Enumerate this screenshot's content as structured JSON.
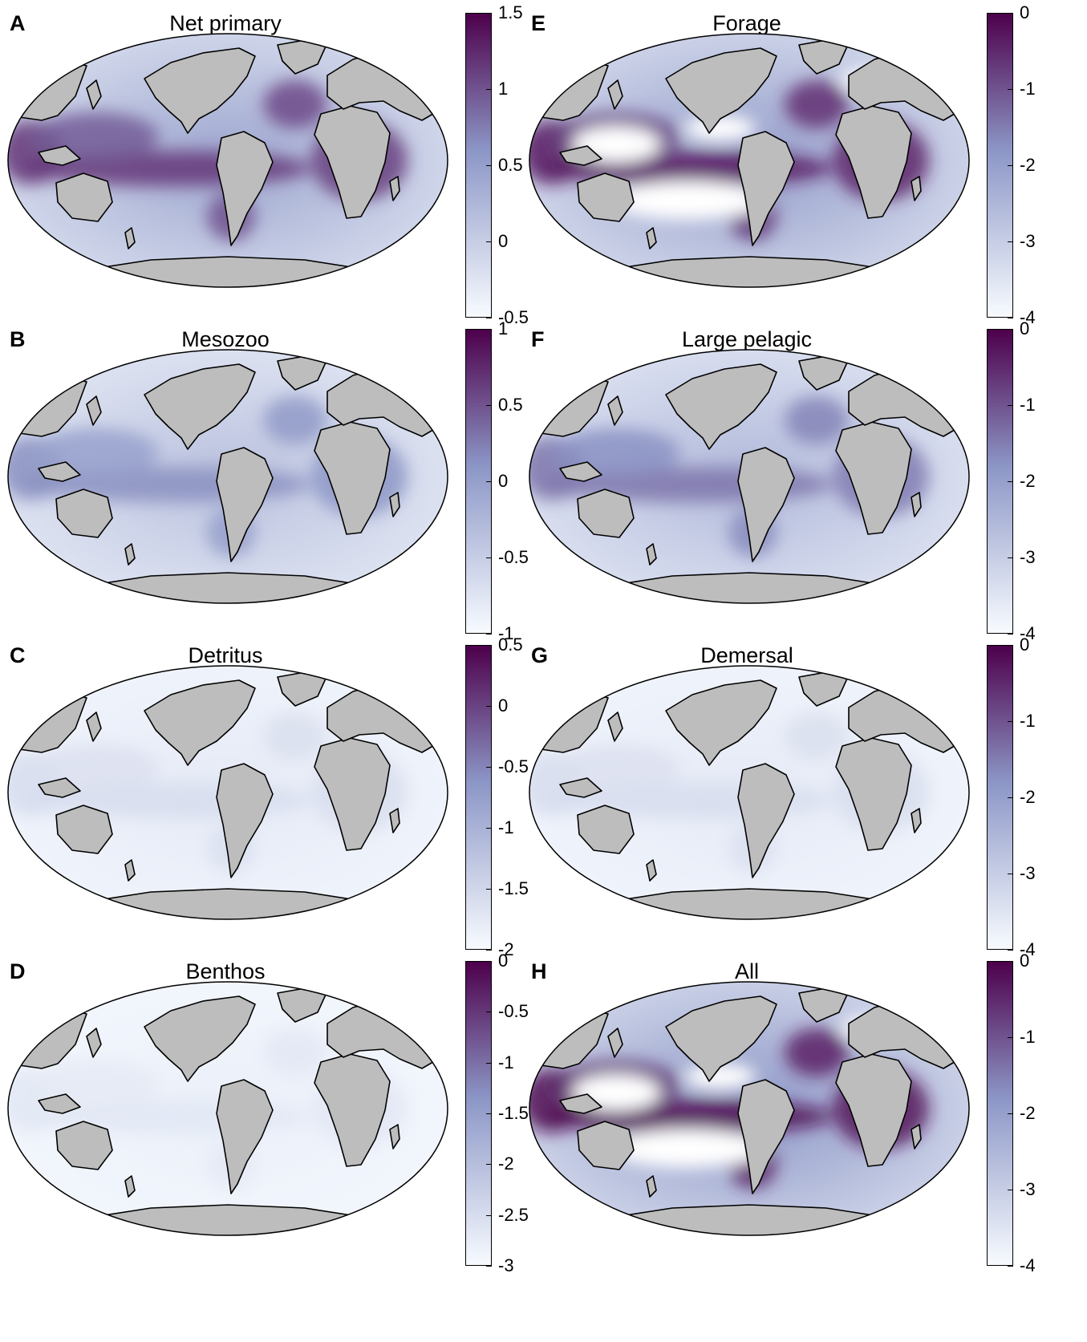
{
  "colors": {
    "land": "#bdbdbd",
    "coast": "#000000",
    "colormap_low": "#f7fbff",
    "colormap_mid": "#8c96c6",
    "colormap_high": "#4d004b"
  },
  "panels": [
    {
      "letter": "A",
      "title": "Net primary",
      "ticks": [
        "1.5",
        "1",
        "0.5",
        "0",
        "-0.5"
      ],
      "range": [
        -0.5,
        1.5
      ],
      "intensity": 0.62,
      "white_areas": false
    },
    {
      "letter": "B",
      "title": "Mesozoo",
      "ticks": [
        "1",
        "0.5",
        "0",
        "-0.5",
        "-1"
      ],
      "range": [
        -1,
        1
      ],
      "intensity": 0.42,
      "white_areas": false
    },
    {
      "letter": "C",
      "title": "Detritus",
      "ticks": [
        "0.5",
        "0",
        "-0.5",
        "-1",
        "-1.5",
        "-2"
      ],
      "range": [
        -2,
        0.5
      ],
      "intensity": 0.12,
      "white_areas": false
    },
    {
      "letter": "D",
      "title": "Benthos",
      "ticks": [
        "0",
        "-0.5",
        "-1",
        "-1.5",
        "-2",
        "-2.5",
        "-3"
      ],
      "range": [
        -3,
        0
      ],
      "intensity": 0.08,
      "white_areas": false
    },
    {
      "letter": "E",
      "title": "Forage",
      "ticks": [
        "0",
        "-1",
        "-2",
        "-3",
        "-4"
      ],
      "range": [
        -4,
        0
      ],
      "intensity": 0.68,
      "white_areas": true
    },
    {
      "letter": "F",
      "title": "Large pelagic",
      "ticks": [
        "0",
        "-1",
        "-2",
        "-3",
        "-4"
      ],
      "range": [
        -4,
        0
      ],
      "intensity": 0.48,
      "white_areas": false
    },
    {
      "letter": "G",
      "title": "Demersal",
      "ticks": [
        "0",
        "-1",
        "-2",
        "-3",
        "-4"
      ],
      "range": [
        -4,
        0
      ],
      "intensity": 0.12,
      "white_areas": false
    },
    {
      "letter": "H",
      "title": "All",
      "ticks": [
        "0",
        "-1",
        "-2",
        "-3",
        "-4"
      ],
      "range": [
        -4,
        0
      ],
      "intensity": 0.72,
      "white_areas": true
    }
  ]
}
